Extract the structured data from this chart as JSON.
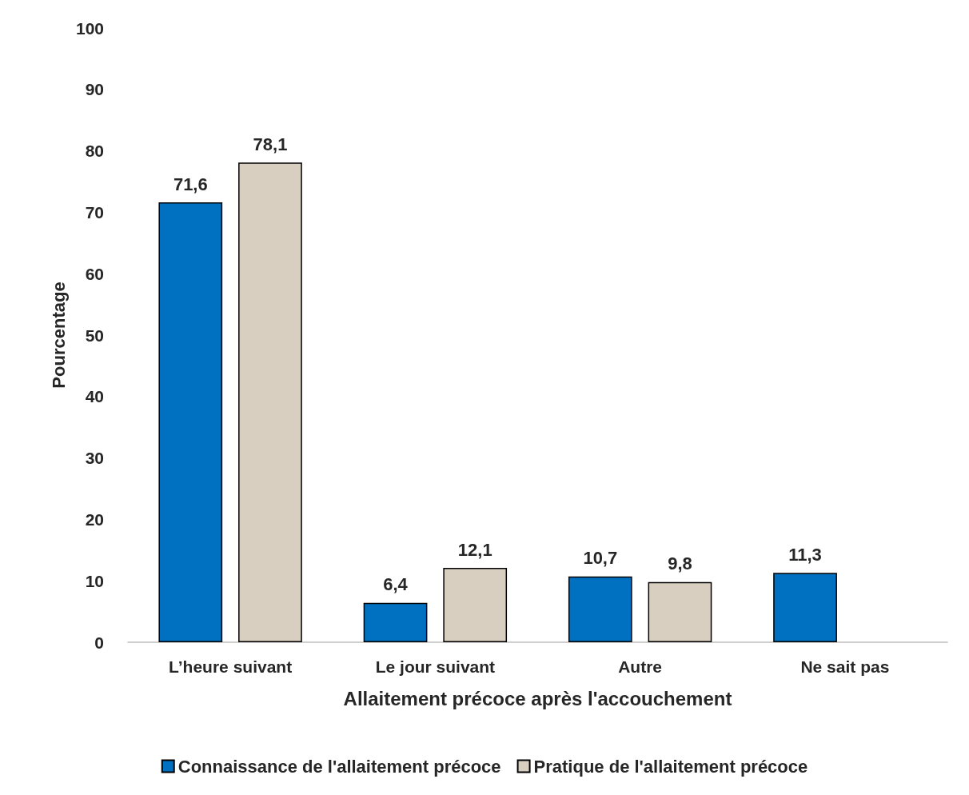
{
  "chart_data": {
    "type": "bar",
    "xlabel": "Allaitement précoce après l'accouchement",
    "ylabel": "Pourcentage",
    "categories": [
      "L’heure suivant",
      "Le jour suivant",
      "Autre",
      "Ne sait pas"
    ],
    "series": [
      {
        "name": "Connaissance de l'allaitement précoce",
        "color": "#0070c0",
        "values": [
          71.6,
          6.4,
          10.7,
          11.3
        ],
        "value_labels": [
          "71,6",
          "6,4",
          "10,7",
          "11,3"
        ]
      },
      {
        "name": "Pratique de l'allaitement précoce",
        "color": "#d8cfc0",
        "values": [
          78.1,
          12.1,
          9.8,
          null
        ],
        "value_labels": [
          "78,1",
          "12,1",
          "9,8",
          null
        ]
      }
    ],
    "ylim": [
      0,
      100
    ],
    "yticks": [
      0,
      10,
      20,
      30,
      40,
      50,
      60,
      70,
      80,
      90,
      100
    ],
    "grid": false,
    "legend": "bottom"
  }
}
